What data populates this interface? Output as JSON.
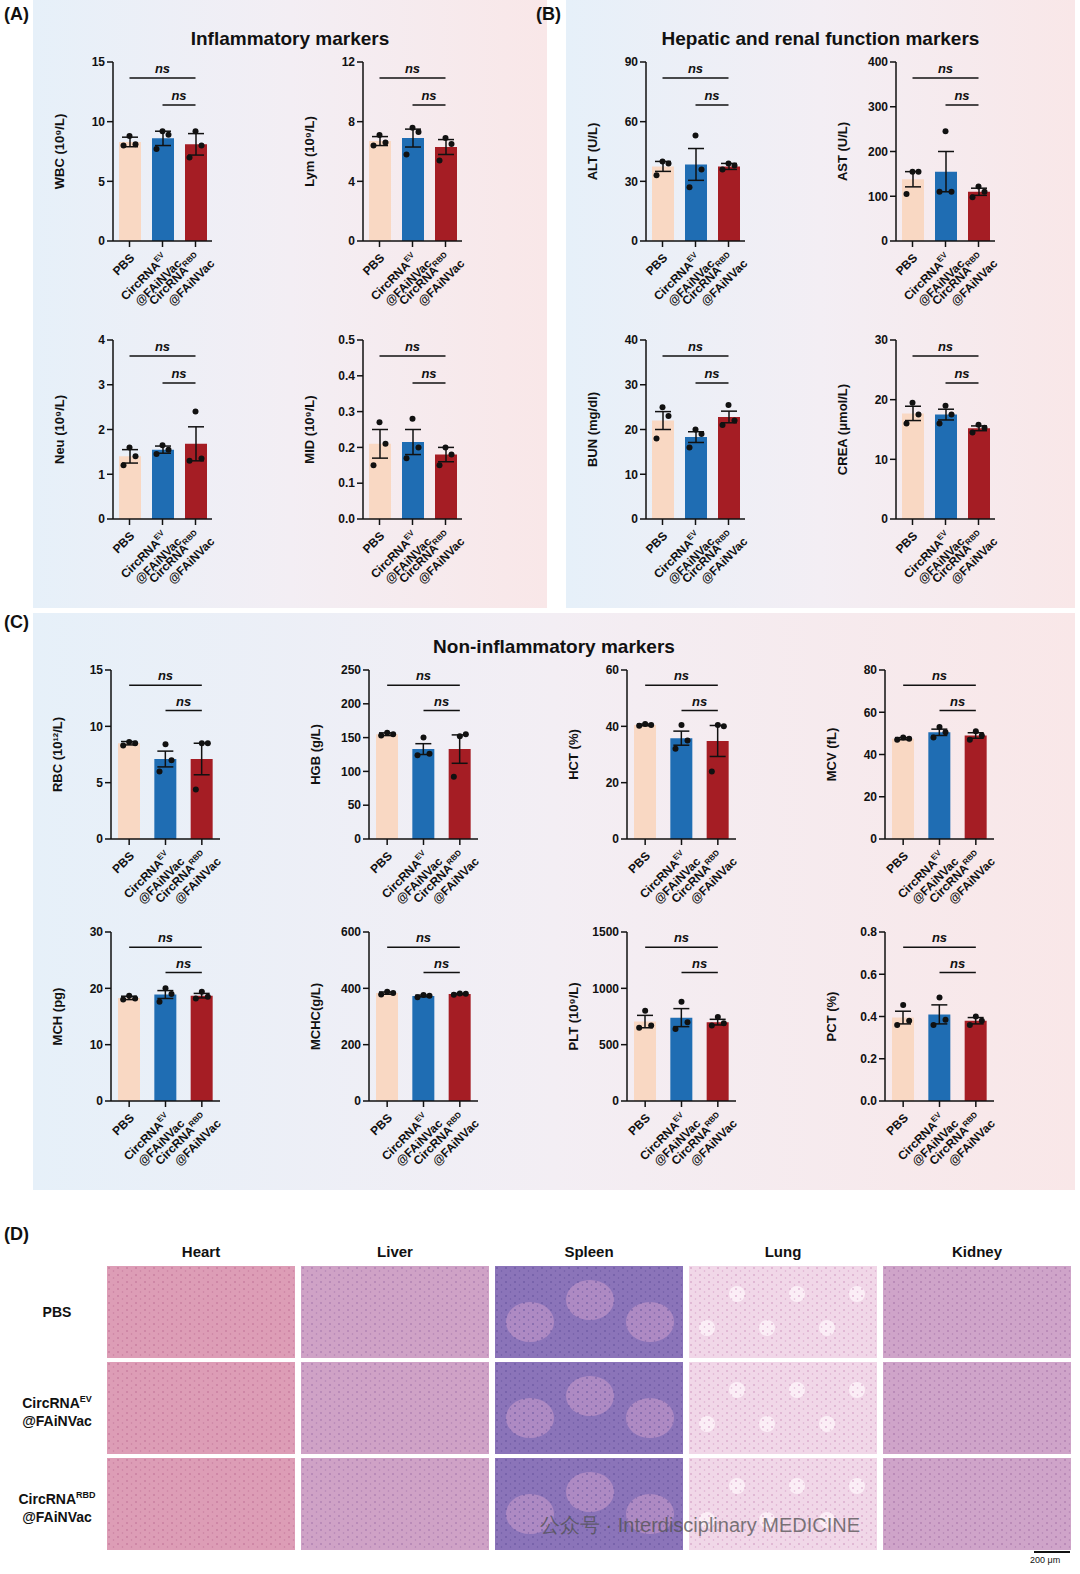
{
  "panels": [
    {
      "letter": "(A)",
      "title": "Inflammatory markers"
    },
    {
      "letter": "(B)",
      "title": "Hepatic and renal function markers"
    },
    {
      "letter": "(C)",
      "title": "Non-inflammatory markers"
    },
    {
      "letter": "(D)"
    }
  ],
  "chart_data": [
    {
      "type": "bar",
      "y_label": "WBC (10⁹/L)",
      "categories": [
        "PBS",
        "CircRNA EV@FAiNVac",
        "CircRNA RBD@FAiNVac"
      ],
      "values": [
        8.3,
        8.6,
        8.1
      ],
      "errors": [
        0.4,
        0.6,
        0.9
      ],
      "points": [
        [
          8.8,
          8.0,
          8.1
        ],
        [
          9.2,
          7.7,
          8.9
        ],
        [
          9.2,
          7.0,
          8.0
        ]
      ],
      "colors": [
        "#f9d8c3",
        "#1f6db3",
        "#a51d24"
      ],
      "ylim": [
        0,
        15
      ],
      "yticks": [
        0,
        5,
        10,
        15
      ],
      "annotations": [
        {
          "text": "ns",
          "from": 0,
          "to": 2
        },
        {
          "text": "ns",
          "from": 1,
          "to": 2
        }
      ]
    },
    {
      "type": "bar",
      "y_label": "Lym (10⁹/L)",
      "categories": [
        "PBS",
        "CircRNA EV@FAiNVac",
        "CircRNA RBD@FAiNVac"
      ],
      "values": [
        6.7,
        6.9,
        6.3
      ],
      "errors": [
        0.3,
        0.6,
        0.5
      ],
      "points": [
        [
          7.1,
          6.4,
          6.6
        ],
        [
          7.6,
          5.8,
          7.3
        ],
        [
          6.9,
          5.4,
          6.5
        ]
      ],
      "colors": [
        "#f9d8c3",
        "#1f6db3",
        "#a51d24"
      ],
      "ylim": [
        0,
        12
      ],
      "yticks": [
        0,
        4,
        8,
        12
      ],
      "annotations": [
        {
          "text": "ns",
          "from": 0,
          "to": 2
        },
        {
          "text": "ns",
          "from": 1,
          "to": 2
        }
      ]
    },
    {
      "type": "bar",
      "y_label": "Neu (10⁹/L)",
      "categories": [
        "PBS",
        "CircRNA EV@FAiNVac",
        "CircRNA RBD@FAiNVac"
      ],
      "values": [
        1.4,
        1.55,
        1.68
      ],
      "errors": [
        0.15,
        0.08,
        0.38
      ],
      "points": [
        [
          1.6,
          1.2,
          1.4
        ],
        [
          1.65,
          1.45,
          1.55
        ],
        [
          2.4,
          1.3,
          1.35
        ]
      ],
      "colors": [
        "#f9d8c3",
        "#1f6db3",
        "#a51d24"
      ],
      "ylim": [
        0,
        4
      ],
      "yticks": [
        0,
        1,
        2,
        3,
        4
      ],
      "annotations": [
        {
          "text": "ns",
          "from": 0,
          "to": 2
        },
        {
          "text": "ns",
          "from": 1,
          "to": 2
        }
      ]
    },
    {
      "type": "bar",
      "y_label": "MID (10⁹/L)",
      "categories": [
        "PBS",
        "CircRNA EV@FAiNVac",
        "CircRNA RBD@FAiNVac"
      ],
      "values": [
        0.21,
        0.215,
        0.18
      ],
      "errors": [
        0.04,
        0.035,
        0.02
      ],
      "points": [
        [
          0.27,
          0.15,
          0.21
        ],
        [
          0.28,
          0.17,
          0.2
        ],
        [
          0.2,
          0.15,
          0.18
        ]
      ],
      "colors": [
        "#f9d8c3",
        "#1f6db3",
        "#a51d24"
      ],
      "ylim": [
        0,
        0.5
      ],
      "yticks": [
        {
          "value": 0,
          "label": "0.0"
        },
        0.1,
        0.2,
        0.3,
        0.4,
        0.5
      ],
      "annotations": [
        {
          "text": "ns",
          "from": 0,
          "to": 2
        },
        {
          "text": "ns",
          "from": 1,
          "to": 2
        }
      ]
    },
    {
      "type": "bar",
      "y_label": "ALT (U/L)",
      "categories": [
        "PBS",
        "CircRNA EV@FAiNVac",
        "CircRNA RBD@FAiNVac"
      ],
      "values": [
        37.5,
        38.5,
        37.5
      ],
      "errors": [
        2.5,
        8,
        1.5
      ],
      "points": [
        [
          40,
          33,
          39
        ],
        [
          53,
          27,
          36
        ],
        [
          39,
          36,
          38
        ]
      ],
      "colors": [
        "#f9d8c3",
        "#1f6db3",
        "#a51d24"
      ],
      "ylim": [
        0,
        90
      ],
      "yticks": [
        0,
        30,
        60,
        90
      ],
      "annotations": [
        {
          "text": "ns",
          "from": 0,
          "to": 2
        },
        {
          "text": "ns",
          "from": 1,
          "to": 2
        }
      ]
    },
    {
      "type": "bar",
      "y_label": "AST (U/L)",
      "categories": [
        "PBS",
        "CircRNA EV@FAiNVac",
        "CircRNA RBD@FAiNVac"
      ],
      "values": [
        138,
        155,
        110
      ],
      "errors": [
        17,
        45,
        8
      ],
      "points": [
        [
          155,
          105,
          155
        ],
        [
          245,
          110,
          110
        ],
        [
          122,
          98,
          110
        ]
      ],
      "colors": [
        "#f9d8c3",
        "#1f6db3",
        "#a51d24"
      ],
      "ylim": [
        0,
        400
      ],
      "yticks": [
        0,
        100,
        200,
        300,
        400
      ],
      "annotations": [
        {
          "text": "ns",
          "from": 0,
          "to": 2
        },
        {
          "text": "ns",
          "from": 1,
          "to": 2
        }
      ]
    },
    {
      "type": "bar",
      "y_label": "BUN (mg/dl)",
      "categories": [
        "PBS",
        "CircRNA EV@FAiNVac",
        "CircRNA RBD@FAiNVac"
      ],
      "values": [
        22,
        18.3,
        22.8
      ],
      "errors": [
        2,
        1.2,
        1.3
      ],
      "points": [
        [
          25,
          18,
          23
        ],
        [
          20,
          16,
          19
        ],
        [
          25.5,
          21,
          22
        ]
      ],
      "colors": [
        "#f9d8c3",
        "#1f6db3",
        "#a51d24"
      ],
      "ylim": [
        0,
        40
      ],
      "yticks": [
        0,
        10,
        20,
        30,
        40
      ],
      "annotations": [
        {
          "text": "ns",
          "from": 0,
          "to": 2
        },
        {
          "text": "ns",
          "from": 1,
          "to": 2
        }
      ]
    },
    {
      "type": "bar",
      "y_label": "CREA (μmol/L)",
      "categories": [
        "PBS",
        "CircRNA EV@FAiNVac",
        "CircRNA RBD@FAiNVac"
      ],
      "values": [
        17.7,
        17.5,
        15.2
      ],
      "errors": [
        1.2,
        0.9,
        0.4
      ],
      "points": [
        [
          19.5,
          16,
          17.5
        ],
        [
          19,
          16,
          17.5
        ],
        [
          15.8,
          14.5,
          15.3
        ]
      ],
      "colors": [
        "#f9d8c3",
        "#1f6db3",
        "#a51d24"
      ],
      "ylim": [
        0,
        30
      ],
      "yticks": [
        0,
        10,
        20,
        30
      ],
      "annotations": [
        {
          "text": "ns",
          "from": 0,
          "to": 2
        },
        {
          "text": "ns",
          "from": 1,
          "to": 2
        }
      ]
    },
    {
      "type": "bar",
      "y_label": "RBC (10¹²/L)",
      "categories": [
        "PBS",
        "CircRNA EV@FAiNVac",
        "CircRNA RBD@FAiNVac"
      ],
      "values": [
        8.5,
        7.1,
        7.1
      ],
      "errors": [
        0.15,
        0.7,
        1.4
      ],
      "points": [
        [
          8.6,
          8.3,
          8.5
        ],
        [
          8.4,
          6.0,
          7.0
        ],
        [
          8.5,
          4.4,
          8.5
        ]
      ],
      "colors": [
        "#f9d8c3",
        "#1f6db3",
        "#a51d24"
      ],
      "ylim": [
        0,
        15
      ],
      "yticks": [
        0,
        5,
        10,
        15
      ],
      "annotations": [
        {
          "text": "ns",
          "from": 0,
          "to": 2
        },
        {
          "text": "ns",
          "from": 1,
          "to": 2
        }
      ]
    },
    {
      "type": "bar",
      "y_label": "HGB (g/L)",
      "categories": [
        "PBS",
        "CircRNA EV@FAiNVac",
        "CircRNA RBD@FAiNVac"
      ],
      "values": [
        155,
        133,
        133
      ],
      "errors": [
        2,
        8,
        21
      ],
      "points": [
        [
          157,
          153,
          155
        ],
        [
          150,
          124,
          126
        ],
        [
          152,
          92,
          155
        ]
      ],
      "colors": [
        "#f9d8c3",
        "#1f6db3",
        "#a51d24"
      ],
      "ylim": [
        0,
        250
      ],
      "yticks": [
        0,
        50,
        100,
        150,
        200,
        250
      ],
      "annotations": [
        {
          "text": "ns",
          "from": 0,
          "to": 2
        },
        {
          "text": "ns",
          "from": 1,
          "to": 2
        }
      ]
    },
    {
      "type": "bar",
      "y_label": "HCT (%)",
      "categories": [
        "PBS",
        "CircRNA EV@FAiNVac",
        "CircRNA RBD@FAiNVac"
      ],
      "values": [
        40.5,
        35.8,
        34.8
      ],
      "errors": [
        0.3,
        2.5,
        5.5
      ],
      "points": [
        [
          40.8,
          40.2,
          40.5
        ],
        [
          40.5,
          32,
          35
        ],
        [
          40.5,
          24,
          40
        ]
      ],
      "colors": [
        "#f9d8c3",
        "#1f6db3",
        "#a51d24"
      ],
      "ylim": [
        0,
        60
      ],
      "yticks": [
        0,
        20,
        40,
        60
      ],
      "annotations": [
        {
          "text": "ns",
          "from": 0,
          "to": 2
        },
        {
          "text": "ns",
          "from": 1,
          "to": 2
        }
      ]
    },
    {
      "type": "bar",
      "y_label": "MCV (fL)",
      "categories": [
        "PBS",
        "CircRNA EV@FAiNVac",
        "CircRNA RBD@FAiNVac"
      ],
      "values": [
        47.5,
        50.5,
        49
      ],
      "errors": [
        0.5,
        1.5,
        1.3
      ],
      "points": [
        [
          48,
          47,
          47.5
        ],
        [
          53,
          48,
          50.5
        ],
        [
          51,
          47,
          49
        ]
      ],
      "colors": [
        "#f9d8c3",
        "#1f6db3",
        "#a51d24"
      ],
      "ylim": [
        0,
        80
      ],
      "yticks": [
        0,
        20,
        40,
        60,
        80
      ],
      "annotations": [
        {
          "text": "ns",
          "from": 0,
          "to": 2
        },
        {
          "text": "ns",
          "from": 1,
          "to": 2
        }
      ]
    },
    {
      "type": "bar",
      "y_label": "MCH (pg)",
      "categories": [
        "PBS",
        "CircRNA EV@FAiNVac",
        "CircRNA RBD@FAiNVac"
      ],
      "values": [
        18.3,
        18.9,
        18.7
      ],
      "errors": [
        0.3,
        0.7,
        0.4
      ],
      "points": [
        [
          18.7,
          18,
          18.2
        ],
        [
          20,
          17.6,
          19
        ],
        [
          19.4,
          18.2,
          18.5
        ]
      ],
      "colors": [
        "#f9d8c3",
        "#1f6db3",
        "#a51d24"
      ],
      "ylim": [
        0,
        30
      ],
      "yticks": [
        0,
        10,
        20,
        30
      ],
      "annotations": [
        {
          "text": "ns",
          "from": 0,
          "to": 2
        },
        {
          "text": "ns",
          "from": 1,
          "to": 2
        }
      ]
    },
    {
      "type": "bar",
      "y_label": "MCHC(g/L)",
      "categories": [
        "PBS",
        "CircRNA EV@FAiNVac",
        "CircRNA RBD@FAiNVac"
      ],
      "values": [
        383,
        373,
        380
      ],
      "errors": [
        4,
        3,
        2
      ],
      "points": [
        [
          388,
          378,
          383
        ],
        [
          376,
          368,
          374
        ],
        [
          382,
          377,
          381
        ]
      ],
      "colors": [
        "#f9d8c3",
        "#1f6db3",
        "#a51d24"
      ],
      "ylim": [
        0,
        600
      ],
      "yticks": [
        0,
        200,
        400,
        600
      ],
      "annotations": [
        {
          "text": "ns",
          "from": 0,
          "to": 2
        },
        {
          "text": "ns",
          "from": 1,
          "to": 2
        }
      ]
    },
    {
      "type": "bar",
      "y_label": "PLT (10⁹/L)",
      "categories": [
        "PBS",
        "CircRNA EV@FAiNVac",
        "CircRNA RBD@FAiNVac"
      ],
      "values": [
        705,
        740,
        700
      ],
      "errors": [
        55,
        80,
        25
      ],
      "points": [
        [
          800,
          650,
          670
        ],
        [
          880,
          640,
          700
        ],
        [
          745,
          670,
          690
        ]
      ],
      "colors": [
        "#f9d8c3",
        "#1f6db3",
        "#a51d24"
      ],
      "ylim": [
        0,
        1500
      ],
      "yticks": [
        0,
        500,
        1000,
        1500
      ],
      "annotations": [
        {
          "text": "ns",
          "from": 0,
          "to": 2
        },
        {
          "text": "ns",
          "from": 1,
          "to": 2
        }
      ]
    },
    {
      "type": "bar",
      "y_label": "PCT (%)",
      "categories": [
        "PBS",
        "CircRNA EV@FAiNVac",
        "CircRNA RBD@FAiNVac"
      ],
      "values": [
        0.395,
        0.41,
        0.38
      ],
      "errors": [
        0.03,
        0.045,
        0.015
      ],
      "points": [
        [
          0.455,
          0.36,
          0.38
        ],
        [
          0.49,
          0.36,
          0.385
        ],
        [
          0.4,
          0.36,
          0.38
        ]
      ],
      "colors": [
        "#f9d8c3",
        "#1f6db3",
        "#a51d24"
      ],
      "ylim": [
        0,
        0.8
      ],
      "yticks": [
        {
          "value": 0,
          "label": "0.0"
        },
        0.2,
        0.4,
        0.6,
        0.8
      ],
      "annotations": [
        {
          "text": "ns",
          "from": 0,
          "to": 2
        },
        {
          "text": "ns",
          "from": 1,
          "to": 2
        }
      ]
    }
  ],
  "histology": {
    "columns": [
      "Heart",
      "Liver",
      "Spleen",
      "Lung",
      "Kidney"
    ],
    "rows": [
      "PBS",
      "CircRNA EV@FAiNVac",
      "CircRNA RBD@FAiNVac"
    ],
    "scale_bar": "200 μm",
    "watermark": "公众号 · Interdisciplinary MEDICINE"
  }
}
